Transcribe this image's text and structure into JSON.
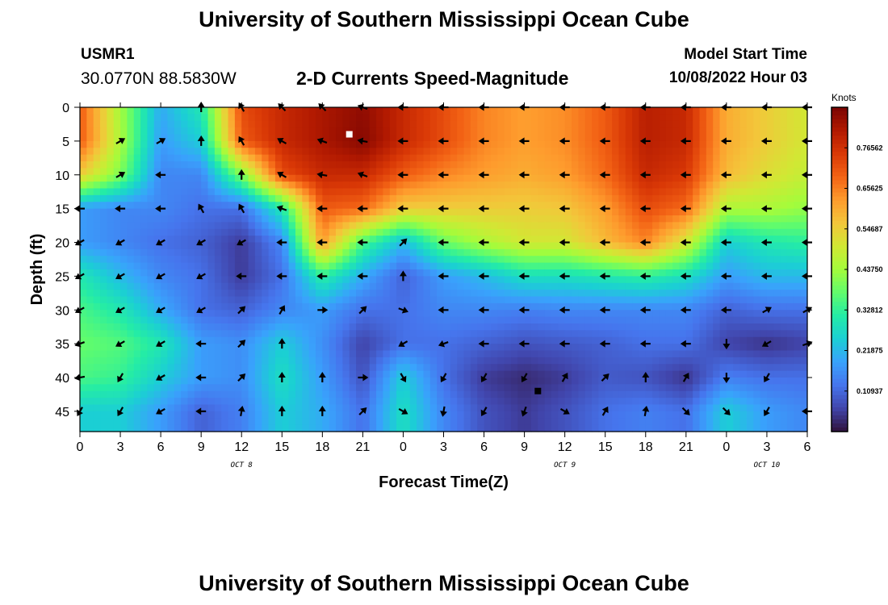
{
  "header": {
    "title": "University of Southern Mississippi Ocean Cube",
    "station_id": "USMR1",
    "coordinates": "30.0770N  88.5830W",
    "subtitle": "2-D Currents Speed-Magnitude",
    "model_start_label": "Model Start Time",
    "model_start_value": "10/08/2022 Hour 03"
  },
  "footer": {
    "title": "University of Southern Mississippi Ocean Cube"
  },
  "chart_data": {
    "type": "heatmap",
    "title": "2-D Currents Speed-Magnitude",
    "xlabel": "Forecast Time(Z)",
    "ylabel": "Depth (ft)",
    "colorbar_unit": "Knots",
    "colorbar_ticks": [
      "0.76562",
      "0.65625",
      "0.54687",
      "0.43750",
      "0.32812",
      "0.21875",
      "0.10937"
    ],
    "colorbar_range": [
      0.0,
      0.875
    ],
    "colors": {
      "scale": [
        "#30123b",
        "#4145ab",
        "#4675ed",
        "#39a2fc",
        "#1bcfd4",
        "#24eca6",
        "#61fc6c",
        "#a4fc3b",
        "#d1e834",
        "#f3c63a",
        "#fe9b2d",
        "#f36315",
        "#d93806",
        "#b11901",
        "#7a0402"
      ]
    },
    "x_tick_labels": [
      "0",
      "3",
      "6",
      "9",
      "12",
      "15",
      "18",
      "21",
      "0",
      "3",
      "6",
      "9",
      "12",
      "15",
      "18",
      "21",
      "0",
      "3",
      "6"
    ],
    "x_range_hours": [
      0,
      54
    ],
    "date_labels": [
      "OCT 8",
      "OCT 9",
      "OCT 10"
    ],
    "y_tick_labels": [
      "0",
      "5",
      "10",
      "15",
      "20",
      "25",
      "30",
      "35",
      "40",
      "45"
    ],
    "y_range_ft": [
      0,
      48
    ],
    "grid": false,
    "legend": "colorbar-right",
    "max_marker": {
      "hour": 20,
      "depth_ft": 4
    },
    "min_marker": {
      "hour": 34,
      "depth_ft": 42
    },
    "depths_ft": [
      0,
      5,
      10,
      15,
      20,
      25,
      30,
      35,
      40,
      45
    ],
    "hours": [
      0,
      3,
      6,
      9,
      12,
      15,
      18,
      21,
      24,
      27,
      30,
      33,
      36,
      39,
      42,
      45,
      48,
      51,
      54
    ],
    "speed_knots": [
      [
        0.7,
        0.44,
        0.2,
        0.3,
        0.72,
        0.78,
        0.82,
        0.85,
        0.78,
        0.72,
        0.65,
        0.62,
        0.64,
        0.7,
        0.8,
        0.78,
        0.6,
        0.55,
        0.5
      ],
      [
        0.7,
        0.45,
        0.18,
        0.25,
        0.7,
        0.78,
        0.82,
        0.86,
        0.78,
        0.72,
        0.65,
        0.62,
        0.64,
        0.7,
        0.8,
        0.78,
        0.6,
        0.55,
        0.5
      ],
      [
        0.55,
        0.4,
        0.15,
        0.15,
        0.4,
        0.72,
        0.78,
        0.78,
        0.7,
        0.65,
        0.62,
        0.6,
        0.62,
        0.68,
        0.78,
        0.75,
        0.58,
        0.52,
        0.48
      ],
      [
        0.18,
        0.15,
        0.15,
        0.12,
        0.12,
        0.3,
        0.7,
        0.68,
        0.55,
        0.55,
        0.55,
        0.55,
        0.56,
        0.62,
        0.72,
        0.68,
        0.45,
        0.45,
        0.42
      ],
      [
        0.18,
        0.15,
        0.12,
        0.1,
        0.05,
        0.15,
        0.62,
        0.35,
        0.22,
        0.38,
        0.45,
        0.5,
        0.5,
        0.58,
        0.65,
        0.5,
        0.25,
        0.3,
        0.32
      ],
      [
        0.3,
        0.22,
        0.15,
        0.12,
        0.05,
        0.12,
        0.32,
        0.2,
        0.1,
        0.18,
        0.22,
        0.28,
        0.28,
        0.3,
        0.32,
        0.28,
        0.18,
        0.22,
        0.22
      ],
      [
        0.35,
        0.3,
        0.2,
        0.12,
        0.1,
        0.15,
        0.18,
        0.12,
        0.12,
        0.15,
        0.15,
        0.14,
        0.15,
        0.15,
        0.15,
        0.15,
        0.1,
        0.12,
        0.12
      ],
      [
        0.38,
        0.36,
        0.3,
        0.18,
        0.16,
        0.25,
        0.16,
        0.06,
        0.12,
        0.12,
        0.1,
        0.08,
        0.09,
        0.1,
        0.12,
        0.12,
        0.06,
        0.04,
        0.06
      ],
      [
        0.35,
        0.33,
        0.25,
        0.18,
        0.16,
        0.28,
        0.18,
        0.08,
        0.25,
        0.12,
        0.05,
        0.03,
        0.05,
        0.09,
        0.08,
        0.04,
        0.14,
        0.12,
        0.12
      ],
      [
        0.25,
        0.25,
        0.18,
        0.1,
        0.14,
        0.25,
        0.2,
        0.12,
        0.28,
        0.15,
        0.08,
        0.05,
        0.08,
        0.12,
        0.14,
        0.12,
        0.25,
        0.18,
        0.15
      ]
    ],
    "arrow_angles_deg": [
      [
        null,
        null,
        null,
        90,
        120,
        135,
        135,
        160,
        180,
        180,
        180,
        180,
        180,
        180,
        180,
        180,
        180,
        180,
        180
      ],
      [
        null,
        30,
        30,
        90,
        120,
        150,
        160,
        170,
        180,
        180,
        180,
        180,
        180,
        180,
        180,
        180,
        180,
        180,
        180
      ],
      [
        null,
        30,
        180,
        null,
        90,
        150,
        170,
        160,
        180,
        180,
        180,
        180,
        180,
        180,
        180,
        180,
        180,
        180,
        180
      ],
      [
        180,
        180,
        180,
        120,
        120,
        160,
        180,
        180,
        180,
        180,
        180,
        180,
        180,
        180,
        180,
        180,
        180,
        180,
        180
      ],
      [
        210,
        210,
        210,
        210,
        210,
        180,
        180,
        180,
        45,
        180,
        180,
        180,
        180,
        180,
        180,
        180,
        180,
        180,
        180
      ],
      [
        210,
        210,
        210,
        210,
        180,
        180,
        180,
        180,
        90,
        180,
        180,
        180,
        180,
        180,
        180,
        180,
        180,
        180,
        180
      ],
      [
        210,
        210,
        210,
        210,
        45,
        60,
        0,
        45,
        340,
        180,
        180,
        180,
        180,
        180,
        180,
        180,
        180,
        30,
        30
      ],
      [
        200,
        210,
        210,
        180,
        45,
        90,
        null,
        null,
        210,
        200,
        180,
        180,
        180,
        180,
        180,
        180,
        270,
        210,
        20
      ],
      [
        190,
        240,
        210,
        180,
        45,
        90,
        90,
        0,
        300,
        240,
        240,
        240,
        60,
        45,
        90,
        60,
        270,
        240,
        null
      ],
      [
        240,
        240,
        210,
        180,
        80,
        90,
        90,
        45,
        330,
        260,
        240,
        250,
        330,
        60,
        80,
        315,
        315,
        240,
        180
      ]
    ]
  }
}
